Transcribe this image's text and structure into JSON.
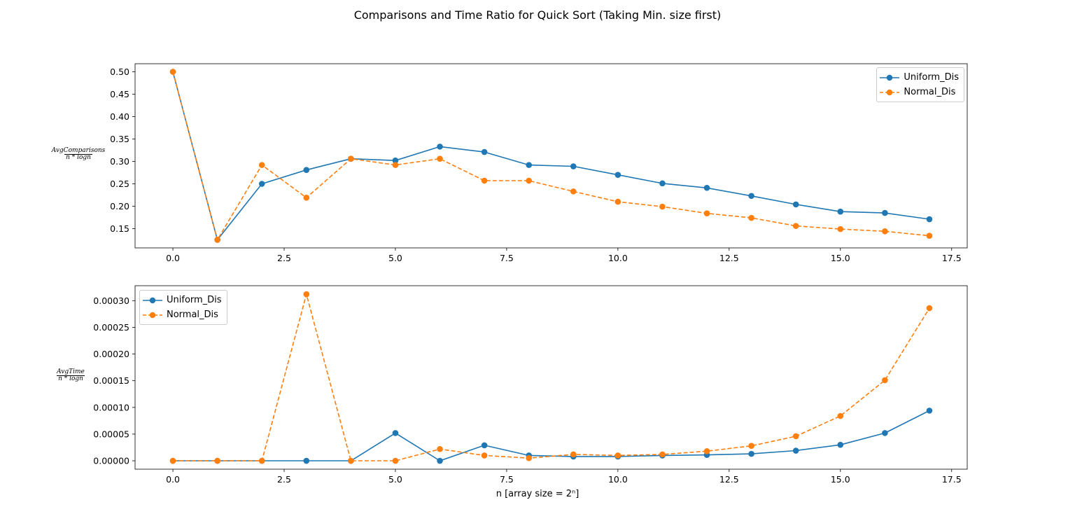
{
  "figure": {
    "title": "Comparisons and Time Ratio for Quick Sort (Taking Min. size first)"
  },
  "chart_data": [
    {
      "type": "line",
      "ylabel": {
        "numerator": "AvgComparisons",
        "denominator": "n * logn"
      },
      "xlabel": "",
      "xlim": [
        -0.85,
        17.85
      ],
      "ylim": [
        0.107,
        0.518
      ],
      "xticks": [
        0.0,
        2.5,
        5.0,
        7.5,
        10.0,
        12.5,
        15.0,
        17.5
      ],
      "xtick_labels": [
        "0.0",
        "2.5",
        "5.0",
        "7.5",
        "10.0",
        "12.5",
        "15.0",
        "17.5"
      ],
      "yticks": [
        0.15,
        0.2,
        0.25,
        0.3,
        0.35,
        0.4,
        0.45,
        0.5
      ],
      "ytick_labels": [
        "0.15",
        "0.20",
        "0.25",
        "0.30",
        "0.35",
        "0.40",
        "0.45",
        "0.50"
      ],
      "legend_position": "top-right",
      "x": [
        0,
        1,
        2,
        3,
        4,
        5,
        6,
        7,
        8,
        9,
        10,
        11,
        12,
        13,
        14,
        15,
        16,
        17
      ],
      "series": [
        {
          "name": "Uniform_Dis",
          "color": "#1f77b4",
          "linestyle": "solid",
          "marker": "circle",
          "values": [
            0.5,
            0.125,
            0.25,
            0.281,
            0.306,
            0.302,
            0.333,
            0.321,
            0.292,
            0.289,
            0.27,
            0.251,
            0.241,
            0.223,
            0.204,
            0.188,
            0.185,
            0.171
          ]
        },
        {
          "name": "Normal_Dis",
          "color": "#ff7f0e",
          "linestyle": "dashed",
          "marker": "circle",
          "values": [
            0.5,
            0.125,
            0.292,
            0.219,
            0.306,
            0.292,
            0.306,
            0.257,
            0.257,
            0.233,
            0.21,
            0.199,
            0.184,
            0.174,
            0.156,
            0.149,
            0.144,
            0.134
          ]
        }
      ]
    },
    {
      "type": "line",
      "ylabel": {
        "numerator": "AvgTime",
        "denominator": "n * logn"
      },
      "xlabel": "n [array size = 2ⁿ]",
      "xlim": [
        -0.85,
        17.85
      ],
      "ylim": [
        -1.57e-05,
        0.000328
      ],
      "xticks": [
        0.0,
        2.5,
        5.0,
        7.5,
        10.0,
        12.5,
        15.0,
        17.5
      ],
      "xtick_labels": [
        "0.0",
        "2.5",
        "5.0",
        "7.5",
        "10.0",
        "12.5",
        "15.0",
        "17.5"
      ],
      "yticks": [
        0,
        5e-05,
        0.0001,
        0.00015,
        0.0002,
        0.00025,
        0.0003
      ],
      "ytick_labels": [
        "0.00000",
        "0.00005",
        "0.00010",
        "0.00015",
        "0.00020",
        "0.00025",
        "0.00030"
      ],
      "legend_position": "top-left",
      "x": [
        0,
        1,
        2,
        3,
        4,
        5,
        6,
        7,
        8,
        9,
        10,
        11,
        12,
        13,
        14,
        15,
        16,
        17
      ],
      "series": [
        {
          "name": "Uniform_Dis",
          "color": "#1f77b4",
          "linestyle": "solid",
          "marker": "circle",
          "values": [
            0,
            0,
            0,
            0,
            0,
            5.2e-05,
            0,
            2.9e-05,
            1e-05,
            8e-06,
            8e-06,
            1e-05,
            1.1e-05,
            1.3e-05,
            1.9e-05,
            3e-05,
            5.2e-05,
            9.4e-05
          ]
        },
        {
          "name": "Normal_Dis",
          "color": "#ff7f0e",
          "linestyle": "dashed",
          "marker": "circle",
          "values": [
            0,
            0,
            0,
            0.000312,
            0,
            0,
            2.2e-05,
            1e-05,
            5e-06,
            1.2e-05,
            1e-05,
            1.2e-05,
            1.8e-05,
            2.8e-05,
            4.6e-05,
            8.4e-05,
            0.000151,
            0.000286
          ]
        }
      ]
    }
  ]
}
